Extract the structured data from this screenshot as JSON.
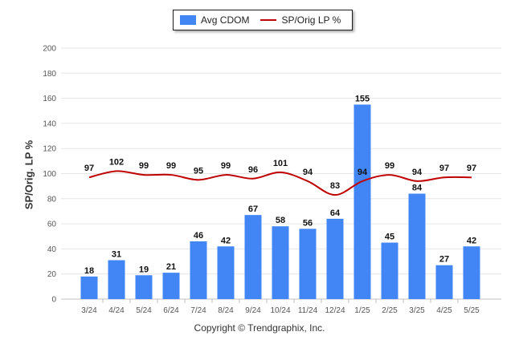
{
  "chart_data": {
    "type": "bar",
    "categories": [
      "3/24",
      "4/24",
      "5/24",
      "6/24",
      "7/24",
      "8/24",
      "9/24",
      "10/24",
      "11/24",
      "12/24",
      "1/25",
      "2/25",
      "3/25",
      "4/25",
      "5/25"
    ],
    "series": [
      {
        "name": "Avg CDOM",
        "type": "bar",
        "color": "#4285f4",
        "values": [
          18,
          31,
          19,
          21,
          46,
          42,
          67,
          58,
          56,
          64,
          155,
          45,
          84,
          27,
          42
        ]
      },
      {
        "name": "SP/Orig LP %",
        "type": "line",
        "color": "#c00000",
        "values": [
          97,
          102,
          99,
          99,
          95,
          99,
          96,
          101,
          94,
          83,
          94,
          99,
          94,
          97,
          97
        ]
      }
    ],
    "ylabel": "SP/Orig. LP %",
    "ylim": [
      0,
      200
    ],
    "yticks": [
      0,
      20,
      40,
      60,
      80,
      100,
      120,
      140,
      160,
      180,
      200
    ],
    "grid": true,
    "legend": "top-center"
  },
  "footer": {
    "copyright": "Copyright © Trendgraphix, Inc."
  }
}
